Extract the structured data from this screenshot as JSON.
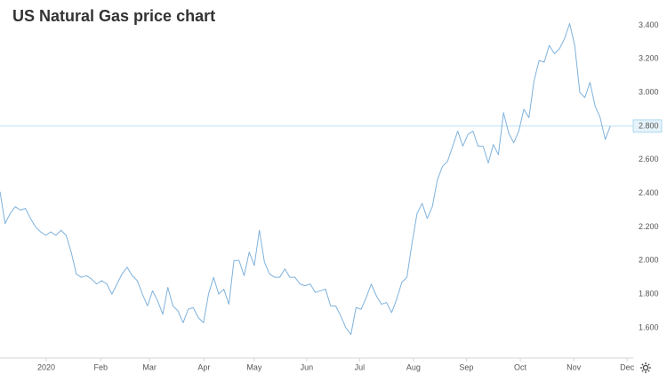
{
  "chart_data": {
    "type": "line",
    "title": "US Natural Gas price chart",
    "color": "#7fb2dc",
    "values": [
      2.41,
      2.22,
      2.28,
      2.32,
      2.3,
      2.31,
      2.25,
      2.2,
      2.17,
      2.15,
      2.17,
      2.15,
      2.18,
      2.15,
      2.05,
      1.92,
      1.9,
      1.91,
      1.89,
      1.86,
      1.88,
      1.86,
      1.8,
      1.86,
      1.92,
      1.96,
      1.91,
      1.88,
      1.8,
      1.73,
      1.82,
      1.76,
      1.68,
      1.84,
      1.73,
      1.7,
      1.63,
      1.71,
      1.72,
      1.66,
      1.63,
      1.8,
      1.9,
      1.8,
      1.83,
      1.74,
      2.0,
      2.0,
      1.91,
      2.05,
      1.97,
      2.18,
      1.99,
      1.92,
      1.9,
      1.9,
      1.95,
      1.9,
      1.9,
      1.86,
      1.85,
      1.86,
      1.81,
      1.82,
      1.83,
      1.73,
      1.73,
      1.67,
      1.6,
      1.56,
      1.72,
      1.71,
      1.78,
      1.86,
      1.79,
      1.74,
      1.75,
      1.69,
      1.77,
      1.87,
      1.9,
      2.1,
      2.28,
      2.34,
      2.25,
      2.32,
      2.48,
      2.56,
      2.59,
      2.68,
      2.77,
      2.68,
      2.75,
      2.77,
      2.68,
      2.68,
      2.58,
      2.69,
      2.63,
      2.88,
      2.76,
      2.7,
      2.77,
      2.9,
      2.85,
      3.07,
      3.19,
      3.18,
      3.28,
      3.23,
      3.26,
      3.32,
      3.41,
      3.28,
      3.0,
      2.97,
      3.06,
      2.92,
      2.85,
      2.72,
      2.8
    ],
    "xlim": [
      0,
      124.5
    ],
    "xticks": [
      {
        "value": 9.1,
        "label": "2020"
      },
      {
        "value": 19.8,
        "label": "Feb"
      },
      {
        "value": 29.4,
        "label": "Mar"
      },
      {
        "value": 40.1,
        "label": "Apr"
      },
      {
        "value": 50.0,
        "label": "May"
      },
      {
        "value": 60.3,
        "label": "Jun"
      },
      {
        "value": 70.7,
        "label": "Jul"
      },
      {
        "value": 81.3,
        "label": "Aug"
      },
      {
        "value": 91.7,
        "label": "Sep"
      },
      {
        "value": 102.3,
        "label": "Oct"
      },
      {
        "value": 112.8,
        "label": "Nov"
      },
      {
        "value": 123.3,
        "label": "Dec"
      }
    ],
    "ylim": [
      1.42,
      3.55
    ],
    "yticks": [
      {
        "value": 1.6,
        "label": "1.600"
      },
      {
        "value": 1.8,
        "label": "1.800"
      },
      {
        "value": 2.0,
        "label": "2.000"
      },
      {
        "value": 2.2,
        "label": "2.200"
      },
      {
        "value": 2.4,
        "label": "2.400"
      },
      {
        "value": 2.6,
        "label": "2.600"
      },
      {
        "value": 2.8,
        "label": "2.800"
      },
      {
        "value": 3.0,
        "label": "3.000"
      },
      {
        "value": 3.2,
        "label": "3.200"
      },
      {
        "value": 3.4,
        "label": "3.400"
      }
    ],
    "current_price": {
      "value": 2.8,
      "label": "2.800"
    },
    "grid": false
  }
}
